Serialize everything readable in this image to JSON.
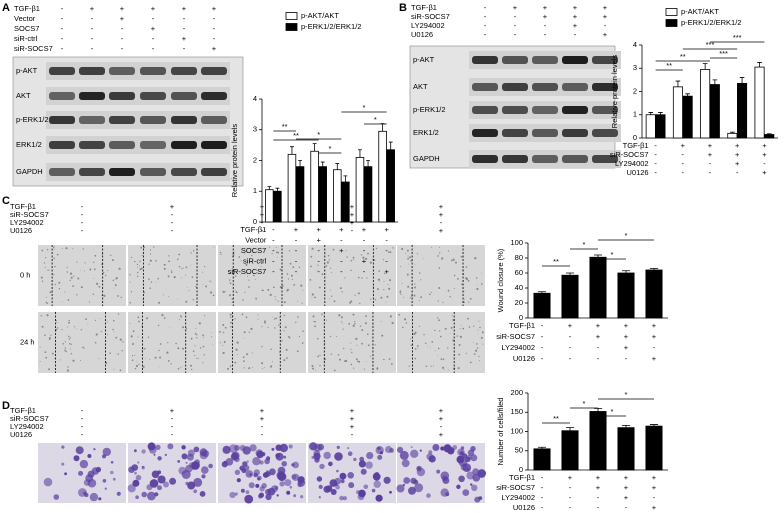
{
  "panels": [
    {
      "label": "A",
      "conditions": [
        {
          "label": "TGF-β1",
          "signs": [
            "-",
            "+",
            "+",
            "+",
            "+",
            "+"
          ]
        },
        {
          "label": "Vector",
          "signs": [
            "-",
            "-",
            "+",
            "-",
            "-",
            "-"
          ]
        },
        {
          "label": "SOCS7",
          "signs": [
            "-",
            "-",
            "-",
            "+",
            "-",
            "-"
          ]
        },
        {
          "label": "siR-ctrl",
          "signs": [
            "-",
            "-",
            "-",
            "-",
            "+",
            "-"
          ]
        },
        {
          "label": "siR-SOCS7",
          "signs": [
            "-",
            "-",
            "-",
            "-",
            "-",
            "+"
          ]
        }
      ],
      "blots": [
        "p-AKT",
        "AKT",
        "p-ERK1/2",
        "ERK1/2",
        "GAPDH"
      ]
    },
    {
      "label": "B",
      "conditions": [
        {
          "label": "TGF-β1",
          "signs": [
            "-",
            "+",
            "+",
            "+",
            "+"
          ]
        },
        {
          "label": "siR-SOCS7",
          "signs": [
            "-",
            "-",
            "+",
            "+",
            "+"
          ]
        },
        {
          "label": "LY294002",
          "signs": [
            "-",
            "-",
            "-",
            "+",
            "-"
          ]
        },
        {
          "label": "U0126",
          "signs": [
            "-",
            "-",
            "-",
            "-",
            "+"
          ]
        }
      ],
      "blots": [
        "p-AKT",
        "AKT",
        "p-ERK1/2",
        "ERK1/2",
        "GAPDH"
      ]
    },
    {
      "label": "C",
      "conditions": [
        {
          "label": "TGF-β1",
          "signs": [
            "-",
            "+",
            "+",
            "+",
            "+"
          ]
        },
        {
          "label": "siR-SOCS7",
          "signs": [
            "-",
            "-",
            "+",
            "+",
            "+"
          ]
        },
        {
          "label": "LY294002",
          "signs": [
            "-",
            "-",
            "-",
            "+",
            "-"
          ]
        },
        {
          "label": "U0126",
          "signs": [
            "-",
            "-",
            "-",
            "-",
            "+"
          ]
        }
      ],
      "image_rows": [
        "0 h",
        "24 h"
      ]
    },
    {
      "label": "D",
      "conditions": [
        {
          "label": "TGF-β1",
          "signs": [
            "-",
            "+",
            "+",
            "+",
            "+"
          ]
        },
        {
          "label": "siR-SOCS7",
          "signs": [
            "-",
            "-",
            "+",
            "+",
            "+"
          ]
        },
        {
          "label": "LY294002",
          "signs": [
            "-",
            "-",
            "-",
            "+",
            "-"
          ]
        },
        {
          "label": "U0126",
          "signs": [
            "-",
            "-",
            "-",
            "-",
            "+"
          ]
        }
      ]
    }
  ],
  "chart_data": [
    {
      "type": "bar",
      "ylabel": "Relative protein levels",
      "ylim": [
        0,
        4
      ],
      "yticks": [
        0,
        1,
        2,
        3,
        4
      ],
      "legend": "upper left",
      "series": [
        {
          "name": "p-AKT/AKT",
          "color": "#ffffff",
          "values": [
            1.05,
            2.2,
            2.3,
            1.7,
            2.1,
            2.95
          ],
          "errors": [
            0.1,
            0.25,
            0.25,
            0.2,
            0.25,
            0.25
          ]
        },
        {
          "name": "p-ERK1/2/ERK1/2",
          "color": "#000000",
          "values": [
            1.0,
            1.8,
            1.8,
            1.3,
            1.8,
            2.35
          ],
          "errors": [
            0.1,
            0.2,
            0.15,
            0.2,
            0.2,
            0.25
          ]
        }
      ],
      "annotations": [
        "**",
        "**",
        "*",
        "*",
        "*",
        "*"
      ],
      "conditions": [
        {
          "label": "TGF-β1",
          "signs": [
            "-",
            "+",
            "+",
            "+",
            "+",
            "+"
          ]
        },
        {
          "label": "Vector",
          "signs": [
            "-",
            "-",
            "+",
            "-",
            "-",
            "-"
          ]
        },
        {
          "label": "SOCS7",
          "signs": [
            "-",
            "-",
            "-",
            "+",
            "-",
            "-"
          ]
        },
        {
          "label": "siR-ctrl",
          "signs": [
            "-",
            "-",
            "-",
            "-",
            "+",
            "-"
          ]
        },
        {
          "label": "siR-SOCS7",
          "signs": [
            "-",
            "-",
            "-",
            "-",
            "-",
            "+"
          ]
        }
      ]
    },
    {
      "type": "bar",
      "ylabel": "Relative protein levels",
      "ylim": [
        0,
        4
      ],
      "yticks": [
        0,
        1,
        2,
        3,
        4
      ],
      "legend": "upper left",
      "series": [
        {
          "name": "p-AKT/AKT",
          "color": "#ffffff",
          "values": [
            1.0,
            2.2,
            2.95,
            0.2,
            3.05
          ],
          "errors": [
            0.1,
            0.25,
            0.25,
            0.05,
            0.2
          ]
        },
        {
          "name": "p-ERK1/2/ERK1/2",
          "color": "#000000",
          "values": [
            1.0,
            1.8,
            2.3,
            2.35,
            0.15
          ],
          "errors": [
            0.1,
            0.1,
            0.2,
            0.25,
            0.03
          ]
        }
      ],
      "annotations": [
        "**",
        "**",
        "***",
        "***",
        "***"
      ],
      "conditions": [
        {
          "label": "TGF-β1",
          "signs": [
            "-",
            "+",
            "+",
            "+",
            "+"
          ]
        },
        {
          "label": "siR-SOCS7",
          "signs": [
            "-",
            "-",
            "+",
            "+",
            "+"
          ]
        },
        {
          "label": "LY294002",
          "signs": [
            "-",
            "-",
            "-",
            "+",
            "-"
          ]
        },
        {
          "label": "U0126",
          "signs": [
            "-",
            "-",
            "-",
            "-",
            "+"
          ]
        }
      ]
    },
    {
      "type": "bar",
      "ylabel": "Wound closure (%)",
      "ylim": [
        0,
        100
      ],
      "yticks": [
        0,
        20,
        40,
        60,
        80,
        100
      ],
      "color": "#000000",
      "values": [
        33,
        57,
        81,
        60,
        64
      ],
      "errors": [
        2,
        3,
        3,
        3,
        2
      ],
      "annotations": [
        "**",
        "*",
        "*",
        "*"
      ],
      "conditions": [
        {
          "label": "TGF-β1",
          "signs": [
            "-",
            "+",
            "+",
            "+",
            "+"
          ]
        },
        {
          "label": "siR-SOCS7",
          "signs": [
            "-",
            "-",
            "+",
            "+",
            "+"
          ]
        },
        {
          "label": "LY294002",
          "signs": [
            "-",
            "-",
            "-",
            "+",
            "-"
          ]
        },
        {
          "label": "U0126",
          "signs": [
            "-",
            "-",
            "-",
            "-",
            "+"
          ]
        }
      ]
    },
    {
      "type": "bar",
      "ylabel": "Number of cells/filed",
      "ylim": [
        0,
        200
      ],
      "yticks": [
        0,
        50,
        100,
        150,
        200
      ],
      "color": "#000000",
      "values": [
        55,
        102,
        152,
        110,
        114
      ],
      "errors": [
        4,
        8,
        8,
        6,
        4
      ],
      "annotations": [
        "**",
        "*",
        "*",
        "*"
      ],
      "conditions": [
        {
          "label": "TGF-β1",
          "signs": [
            "-",
            "+",
            "+",
            "+",
            "+"
          ]
        },
        {
          "label": "siR-SOCS7",
          "signs": [
            "-",
            "-",
            "+",
            "+",
            "+"
          ]
        },
        {
          "label": "LY294002",
          "signs": [
            "-",
            "-",
            "-",
            "+",
            "-"
          ]
        },
        {
          "label": "U0126",
          "signs": [
            "-",
            "-",
            "-",
            "-",
            "+"
          ]
        }
      ]
    }
  ]
}
